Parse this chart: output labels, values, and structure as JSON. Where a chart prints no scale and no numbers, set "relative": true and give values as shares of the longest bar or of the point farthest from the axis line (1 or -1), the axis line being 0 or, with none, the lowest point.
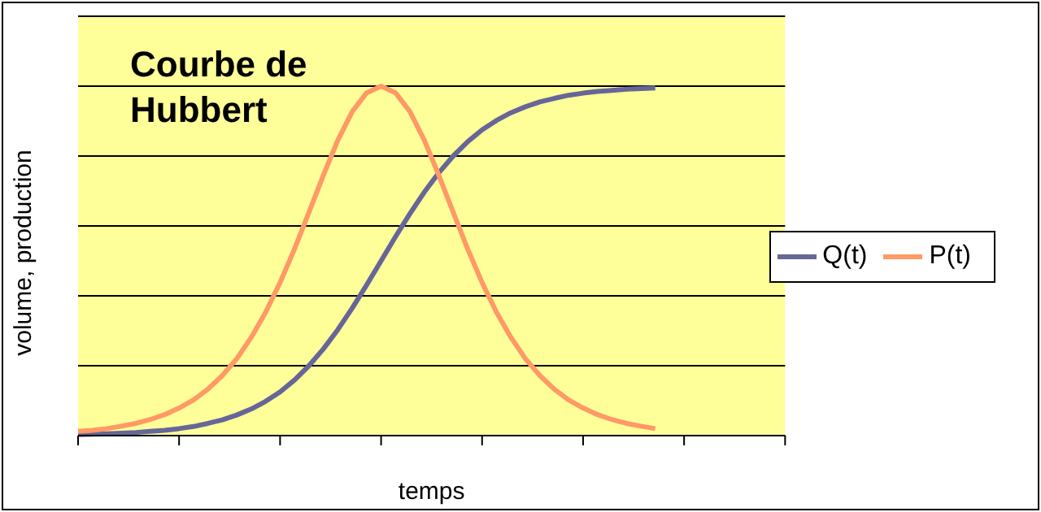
{
  "chart_data": {
    "type": "line",
    "title": "Courbe de Hubbert",
    "xlabel": "temps",
    "ylabel": "volume, production",
    "relative": true,
    "grid": "y",
    "legend": "right",
    "marker": "none",
    "line_style": "solid",
    "categories": [
      null,
      null,
      null,
      null,
      null,
      null,
      null,
      null,
      null,
      null,
      null,
      null,
      null,
      null,
      null,
      null,
      null,
      null,
      null,
      null,
      null,
      null,
      null,
      null,
      null,
      null,
      null,
      null,
      null,
      null,
      null,
      null,
      null,
      null,
      null,
      null,
      null,
      null,
      null,
      null,
      null,
      null,
      null,
      null,
      null,
      null,
      null,
      null,
      null,
      null
    ],
    "series": [
      {
        "name": "Q(t)",
        "color": "#666699",
        "values": [
          0.003,
          0.004,
          0.005,
          0.007,
          0.009,
          0.012,
          0.015,
          0.02,
          0.026,
          0.035,
          0.045,
          0.059,
          0.076,
          0.098,
          0.125,
          0.159,
          0.2,
          0.248,
          0.303,
          0.365,
          0.431,
          0.5,
          0.569,
          0.635,
          0.697,
          0.752,
          0.8,
          0.841,
          0.875,
          0.902,
          0.924,
          0.941,
          0.955,
          0.965,
          0.974,
          0.98,
          0.985,
          0.988,
          0.991,
          0.993,
          0.995,
          null,
          null,
          null,
          null,
          null,
          null,
          null,
          null,
          null
        ]
      },
      {
        "name": "P(t)",
        "color": "#ff9966",
        "values": [
          0.012,
          0.015,
          0.02,
          0.027,
          0.035,
          0.046,
          0.06,
          0.079,
          0.102,
          0.133,
          0.172,
          0.22,
          0.281,
          0.353,
          0.438,
          0.534,
          0.639,
          0.745,
          0.845,
          0.927,
          0.981,
          1,
          0.981,
          0.927,
          0.845,
          0.745,
          0.639,
          0.534,
          0.438,
          0.353,
          0.281,
          0.22,
          0.172,
          0.133,
          0.102,
          0.079,
          0.06,
          0.046,
          0.035,
          0.027,
          0.02,
          null,
          null,
          null,
          null,
          null,
          null,
          null,
          null,
          null
        ]
      }
    ]
  }
}
